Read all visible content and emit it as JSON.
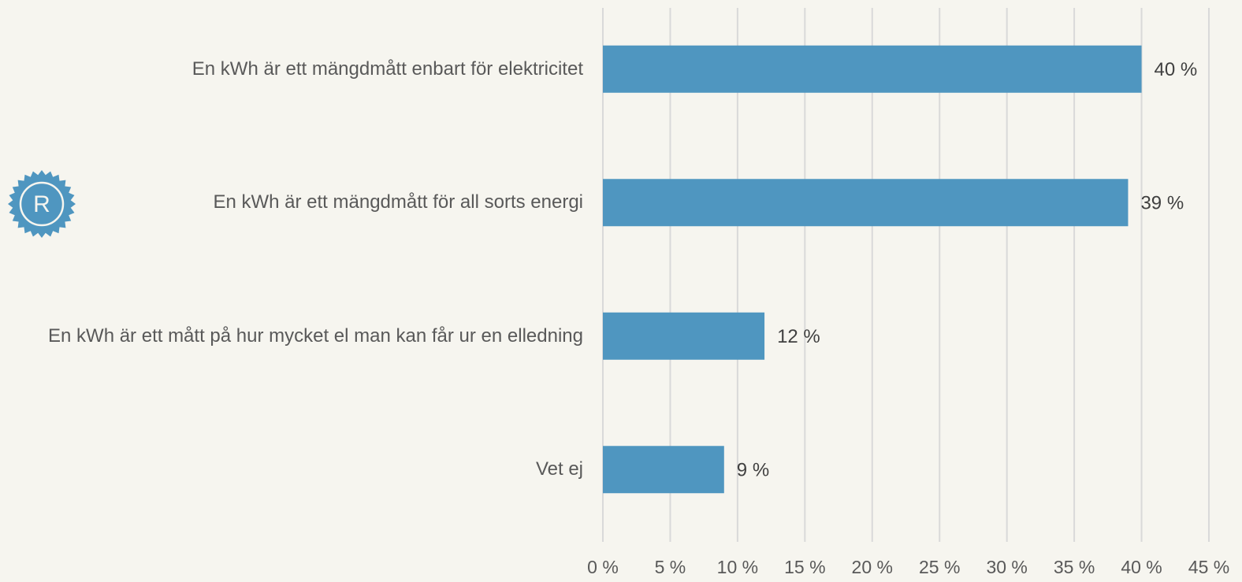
{
  "logo": "R",
  "chart_data": {
    "type": "barh",
    "categories": [
      "En kWh är ett mängdmått enbart för elektricitet",
      "En kWh är ett mängdmått för all sorts energi",
      "En kWh är ett mått på hur mycket el man kan får ur en elledning",
      "Vet ej"
    ],
    "values": [
      40,
      39,
      12,
      9
    ],
    "value_labels": [
      "40 %",
      "39 %",
      "12 %",
      "9 %"
    ],
    "color": "#4f96c0",
    "xlim": [
      0,
      45
    ],
    "xticks": [
      {
        "value": 0,
        "label": "0 %"
      },
      {
        "value": 5,
        "label": "5 %"
      },
      {
        "value": 10,
        "label": "10 %"
      },
      {
        "value": 15,
        "label": "15 %"
      },
      {
        "value": 20,
        "label": "20 %"
      },
      {
        "value": 25,
        "label": "25 %"
      },
      {
        "value": 30,
        "label": "30 %"
      },
      {
        "value": 35,
        "label": "35 %"
      },
      {
        "value": 40,
        "label": "40 %"
      },
      {
        "value": 45,
        "label": "45 %"
      }
    ],
    "grid": true
  }
}
